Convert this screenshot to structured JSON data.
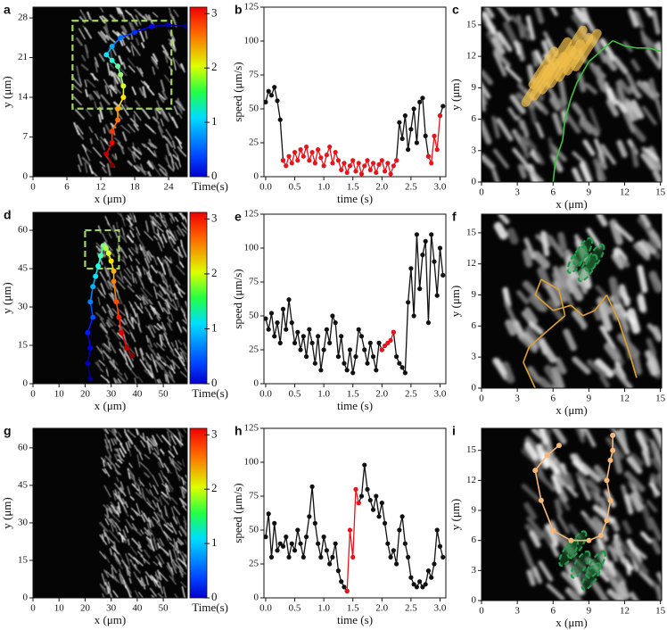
{
  "chart_data": [
    {
      "type": "image",
      "label": "a",
      "x_label": "x (μm)",
      "y_label": "y (μm)",
      "xlim": [
        0,
        27.3
      ],
      "xticks": [
        0,
        6,
        12,
        18,
        24
      ],
      "ylim": [
        0,
        29.9
      ],
      "yticks": [
        0,
        7,
        14,
        21,
        28
      ],
      "trajectory": {
        "x": [
          27,
          24,
          21,
          18,
          15.5,
          14,
          13,
          14,
          15,
          15.5,
          16,
          16,
          15,
          15,
          14,
          14,
          13,
          14
        ],
        "y": [
          26.5,
          26.8,
          26.5,
          25.5,
          24.5,
          23,
          21.5,
          20.5,
          19.5,
          18,
          16,
          14,
          12,
          10,
          8,
          6,
          4,
          2
        ],
        "colormap": "jet",
        "markers": true
      },
      "colorbar": {
        "label": "Time(s)",
        "lim": [
          0,
          3.12
        ],
        "ticks": [
          0,
          1,
          2,
          3
        ]
      }
    },
    {
      "type": "line",
      "label": "b",
      "x_label": "time (s)",
      "y_label": "speed (μm/s)",
      "xlim": [
        -0.03,
        3.1
      ],
      "xticks": [
        {
          "value": 0,
          "label": "0.0"
        },
        0.5,
        {
          "value": 1,
          "label": "1.0"
        },
        1.5,
        {
          "value": 2,
          "label": "2.0"
        },
        2.5,
        {
          "value": 3,
          "label": "3.0"
        }
      ],
      "ylim": [
        0,
        125
      ],
      "yticks": [
        0,
        25,
        50,
        75,
        100,
        125
      ],
      "x": [
        0,
        0.05,
        0.1,
        0.15,
        0.2,
        0.25,
        0.3,
        0.35,
        0.4,
        0.45,
        0.5,
        0.55,
        0.6,
        0.65,
        0.7,
        0.75,
        0.8,
        0.85,
        0.9,
        0.95,
        1,
        1.05,
        1.1,
        1.15,
        1.2,
        1.25,
        1.3,
        1.35,
        1.4,
        1.45,
        1.5,
        1.55,
        1.6,
        1.65,
        1.7,
        1.75,
        1.8,
        1.85,
        1.9,
        1.95,
        2,
        2.05,
        2.1,
        2.15,
        2.2,
        2.25,
        2.3,
        2.35,
        2.4,
        2.45,
        2.5,
        2.55,
        2.6,
        2.65,
        2.7,
        2.75,
        2.8,
        2.85,
        2.9,
        2.95,
        3,
        3.05
      ],
      "series": [
        {
          "color": "#111111",
          "values": [
            55,
            63,
            60,
            66,
            56,
            42,
            12,
            null,
            null,
            null,
            null,
            null,
            null,
            null,
            null,
            null,
            null,
            null,
            null,
            null,
            null,
            null,
            null,
            null,
            null,
            null,
            null,
            null,
            null,
            null,
            null,
            null,
            null,
            null,
            null,
            null,
            null,
            null,
            null,
            null,
            null,
            null,
            null,
            null,
            null,
            12,
            40,
            28,
            45,
            20,
            35,
            50,
            25,
            55,
            58,
            30,
            15,
            null,
            null,
            null,
            45,
            52
          ]
        },
        {
          "color": "#e8141c",
          "values": [
            null,
            null,
            null,
            null,
            null,
            null,
            12,
            8,
            15,
            10,
            18,
            12,
            20,
            15,
            22,
            12,
            18,
            10,
            20,
            14,
            8,
            16,
            22,
            10,
            18,
            12,
            5,
            10,
            3,
            8,
            12,
            4,
            10,
            2,
            8,
            12,
            5,
            10,
            3,
            9,
            12,
            4,
            10,
            2,
            8,
            12,
            null,
            null,
            null,
            null,
            null,
            null,
            null,
            null,
            null,
            null,
            15,
            10,
            30,
            20,
            45,
            null
          ]
        }
      ]
    },
    {
      "type": "image",
      "label": "c",
      "x_label": "x (μm)",
      "y_label": "y (μm)",
      "xlim": [
        0,
        15.1
      ],
      "xticks": [
        0,
        3,
        6,
        9,
        12,
        15
      ],
      "ylim": [
        0,
        16.7
      ],
      "yticks": [
        0,
        3,
        6,
        9,
        12,
        15
      ],
      "trajectory": {
        "x": [
          6,
          6.2,
          6.8,
          7,
          7.5,
          8,
          8.5,
          9,
          10,
          11,
          12,
          13,
          14,
          15
        ],
        "y": [
          0,
          2,
          4,
          6,
          8,
          9.5,
          10.5,
          11.5,
          12.5,
          13.5,
          13,
          12.8,
          12.8,
          12.5
        ],
        "color": "#3ec43e"
      }
    },
    {
      "type": "image",
      "label": "d",
      "x_label": "x (μm)",
      "y_label": "y (μm)",
      "xlim": [
        0,
        59.2
      ],
      "xticks": [
        0,
        10,
        20,
        30,
        40,
        50
      ],
      "ylim": [
        0,
        67
      ],
      "yticks": [
        0,
        15,
        30,
        45,
        60
      ],
      "trajectory": {
        "x": [
          22,
          21,
          22,
          21,
          23,
          22,
          23,
          24,
          25,
          26,
          27,
          28,
          29,
          30,
          31,
          31,
          32,
          33,
          34,
          36,
          38
        ],
        "y": [
          2,
          8,
          14,
          20,
          26,
          32,
          38,
          42,
          46,
          50,
          54,
          53,
          51,
          48,
          44,
          40,
          32,
          26,
          20,
          14,
          11
        ],
        "colormap": "jet",
        "markers": true
      },
      "colorbar": {
        "label": "Time(s)",
        "lim": [
          0,
          3.12
        ],
        "ticks": [
          0,
          1,
          2,
          3
        ]
      }
    },
    {
      "type": "line",
      "label": "e",
      "x_label": "time (s)",
      "y_label": "speed (μm/s)",
      "xlim": [
        -0.03,
        3.1
      ],
      "xticks": [
        {
          "value": 0,
          "label": "0.0"
        },
        0.5,
        {
          "value": 1,
          "label": "1.0"
        },
        1.5,
        {
          "value": 2,
          "label": "2.0"
        },
        2.5,
        {
          "value": 3,
          "label": "3.0"
        }
      ],
      "ylim": [
        0,
        125
      ],
      "yticks": [
        0,
        25,
        50,
        75,
        100,
        125
      ],
      "x": [
        0,
        0.05,
        0.1,
        0.15,
        0.2,
        0.25,
        0.3,
        0.35,
        0.4,
        0.45,
        0.5,
        0.55,
        0.6,
        0.65,
        0.7,
        0.75,
        0.8,
        0.85,
        0.9,
        0.95,
        1,
        1.05,
        1.1,
        1.15,
        1.2,
        1.25,
        1.3,
        1.35,
        1.4,
        1.45,
        1.5,
        1.55,
        1.6,
        1.65,
        1.7,
        1.75,
        1.8,
        1.85,
        1.9,
        1.95,
        2,
        2.05,
        2.1,
        2.15,
        2.2,
        2.25,
        2.3,
        2.35,
        2.4,
        2.45,
        2.5,
        2.55,
        2.6,
        2.65,
        2.7,
        2.75,
        2.8,
        2.85,
        2.9,
        2.95,
        3,
        3.05
      ],
      "series": [
        {
          "color": "#111111",
          "values": [
            48,
            40,
            52,
            35,
            45,
            30,
            55,
            40,
            62,
            45,
            30,
            38,
            25,
            35,
            20,
            40,
            30,
            15,
            35,
            10,
            25,
            40,
            30,
            50,
            45,
            20,
            35,
            15,
            10,
            25,
            8,
            20,
            40,
            35,
            25,
            15,
            30,
            20,
            10,
            30,
            25,
            null,
            null,
            null,
            38,
            20,
            15,
            12,
            8,
            60,
            85,
            50,
            110,
            70,
            95,
            105,
            45,
            110,
            90,
            65,
            100,
            80
          ]
        },
        {
          "color": "#e8141c",
          "values": [
            null,
            null,
            null,
            null,
            null,
            null,
            null,
            null,
            null,
            null,
            null,
            null,
            null,
            null,
            null,
            null,
            null,
            null,
            null,
            null,
            null,
            null,
            null,
            null,
            null,
            null,
            null,
            null,
            null,
            null,
            null,
            null,
            null,
            null,
            null,
            null,
            null,
            null,
            null,
            null,
            25,
            28,
            30,
            32,
            38,
            null,
            null,
            null,
            null,
            null,
            null,
            null,
            null,
            null,
            null,
            null,
            null,
            null,
            null,
            null,
            null,
            null
          ]
        }
      ]
    },
    {
      "type": "image",
      "label": "f",
      "x_label": "x (μm)",
      "y_label": "y (μm)",
      "xlim": [
        0,
        15.1
      ],
      "xticks": [
        0,
        3,
        6,
        9,
        12,
        15
      ],
      "ylim": [
        0,
        16.8
      ],
      "yticks": [
        0,
        3,
        6,
        9,
        12,
        15
      ],
      "trajectory": {
        "x": [
          4.5,
          3.5,
          4,
          5.5,
          7,
          6.5,
          5,
          4.5,
          6,
          7.5,
          8.5,
          9.5,
          10.5,
          11.5,
          12.5,
          13
        ],
        "y": [
          0,
          2.5,
          4,
          5.5,
          7,
          9.5,
          10.5,
          9,
          7.5,
          8,
          7,
          7.5,
          9,
          6.5,
          3,
          1
        ],
        "color": "#e0a030"
      }
    },
    {
      "type": "image",
      "label": "g",
      "x_label": "x (μm)",
      "y_label": "y (μm)",
      "xlim": [
        0,
        59.2
      ],
      "xticks": [
        0,
        10,
        20,
        30,
        40,
        50
      ],
      "ylim": [
        0,
        67.8
      ],
      "yticks": [
        0,
        15,
        30,
        45,
        60
      ],
      "colorbar": {
        "label": "Time(s)",
        "lim": [
          0,
          3.12
        ],
        "ticks": [
          0,
          1,
          2,
          3
        ]
      }
    },
    {
      "type": "line",
      "label": "h",
      "x_label": "time (s)",
      "y_label": "speed (μm/s)",
      "xlim": [
        -0.03,
        3.1
      ],
      "xticks": [
        {
          "value": 0,
          "label": "0.0"
        },
        0.5,
        {
          "value": 1,
          "label": "1.0"
        },
        1.5,
        {
          "value": 2,
          "label": "2.0"
        },
        2.5,
        {
          "value": 3,
          "label": "3.0"
        }
      ],
      "ylim": [
        0,
        125
      ],
      "yticks": [
        0,
        25,
        50,
        75,
        100,
        125
      ],
      "x": [
        0,
        0.05,
        0.1,
        0.15,
        0.2,
        0.25,
        0.3,
        0.35,
        0.4,
        0.45,
        0.5,
        0.55,
        0.6,
        0.65,
        0.7,
        0.75,
        0.8,
        0.85,
        0.9,
        0.95,
        1,
        1.05,
        1.1,
        1.15,
        1.2,
        1.25,
        1.3,
        1.35,
        1.4,
        1.45,
        1.5,
        1.55,
        1.6,
        1.65,
        1.7,
        1.75,
        1.8,
        1.85,
        1.9,
        1.95,
        2,
        2.05,
        2.1,
        2.15,
        2.2,
        2.25,
        2.3,
        2.35,
        2.4,
        2.45,
        2.5,
        2.55,
        2.6,
        2.65,
        2.7,
        2.75,
        2.8,
        2.85,
        2.9,
        2.95,
        3,
        3.05
      ],
      "series": [
        {
          "color": "#111111",
          "values": [
            45,
            62,
            30,
            55,
            35,
            40,
            38,
            45,
            30,
            40,
            35,
            50,
            40,
            30,
            45,
            60,
            82,
            55,
            40,
            30,
            45,
            35,
            25,
            30,
            40,
            20,
            12,
            8,
            5,
            null,
            null,
            null,
            70,
            75,
            98,
            80,
            72,
            65,
            75,
            60,
            70,
            55,
            40,
            30,
            35,
            25,
            50,
            60,
            40,
            30,
            15,
            10,
            8,
            12,
            8,
            10,
            20,
            15,
            25,
            50,
            38,
            30
          ]
        },
        {
          "color": "#e8141c",
          "values": [
            null,
            null,
            null,
            null,
            null,
            null,
            null,
            null,
            null,
            null,
            null,
            null,
            null,
            null,
            null,
            null,
            null,
            null,
            null,
            null,
            null,
            null,
            null,
            null,
            null,
            null,
            null,
            null,
            5,
            50,
            30,
            80,
            70,
            null,
            null,
            null,
            null,
            null,
            null,
            null,
            null,
            null,
            null,
            null,
            null,
            null,
            null,
            null,
            null,
            null,
            null,
            null,
            null,
            null,
            null,
            null,
            null,
            null,
            null,
            null,
            null,
            null
          ]
        }
      ]
    },
    {
      "type": "image",
      "label": "i",
      "x_label": "x (μm)",
      "y_label": "y (μm)",
      "xlim": [
        0,
        15.1
      ],
      "xticks": [
        0,
        3,
        6,
        9,
        12,
        15
      ],
      "ylim": [
        0,
        17.2
      ],
      "yticks": [
        0,
        3,
        6,
        9,
        12,
        15
      ],
      "trajectory": {
        "x": [
          11,
          11,
          10.8,
          10.5,
          10.8,
          10.5,
          10,
          9,
          7.5,
          6,
          5,
          4.5,
          5.5,
          6.5
        ],
        "y": [
          16.5,
          15,
          14,
          12,
          10,
          8,
          6.5,
          6,
          6,
          7,
          10,
          13,
          14.5,
          15.5
        ],
        "color": "#f5b878",
        "markers": true
      }
    }
  ]
}
